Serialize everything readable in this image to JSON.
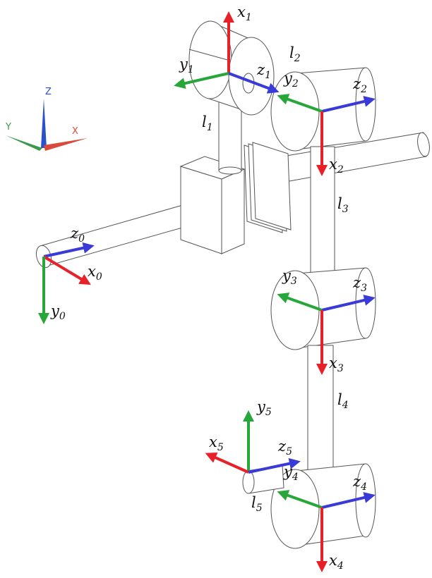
{
  "colors": {
    "x_axis": "#e8202a",
    "y_axis": "#27a63a",
    "z_axis": "#3a3ad8",
    "outline": "#555555",
    "text": "#111111",
    "triad_x": "#d94a3a",
    "triad_y": "#3a9a4a",
    "triad_z": "#2a52c8"
  },
  "orientation_triad": {
    "x": "X",
    "y": "Y",
    "z": "Z"
  },
  "frames": {
    "f0": {
      "x": "x",
      "y": "y",
      "z": "z",
      "sub": "0"
    },
    "f1": {
      "x": "x",
      "y": "y",
      "z": "z",
      "sub": "1"
    },
    "f2": {
      "x": "x",
      "y": "y",
      "z": "z",
      "sub": "2"
    },
    "f3": {
      "x": "x",
      "y": "y",
      "z": "z",
      "sub": "3"
    },
    "f4": {
      "x": "x",
      "y": "y",
      "z": "z",
      "sub": "4"
    },
    "f5": {
      "x": "x",
      "y": "y",
      "z": "z",
      "sub": "5"
    }
  },
  "links": {
    "l1": {
      "base": "l",
      "sub": "1"
    },
    "l2": {
      "base": "l",
      "sub": "2"
    },
    "l3": {
      "base": "l",
      "sub": "3"
    },
    "l4": {
      "base": "l",
      "sub": "4"
    },
    "l5": {
      "base": "l",
      "sub": "5"
    }
  }
}
